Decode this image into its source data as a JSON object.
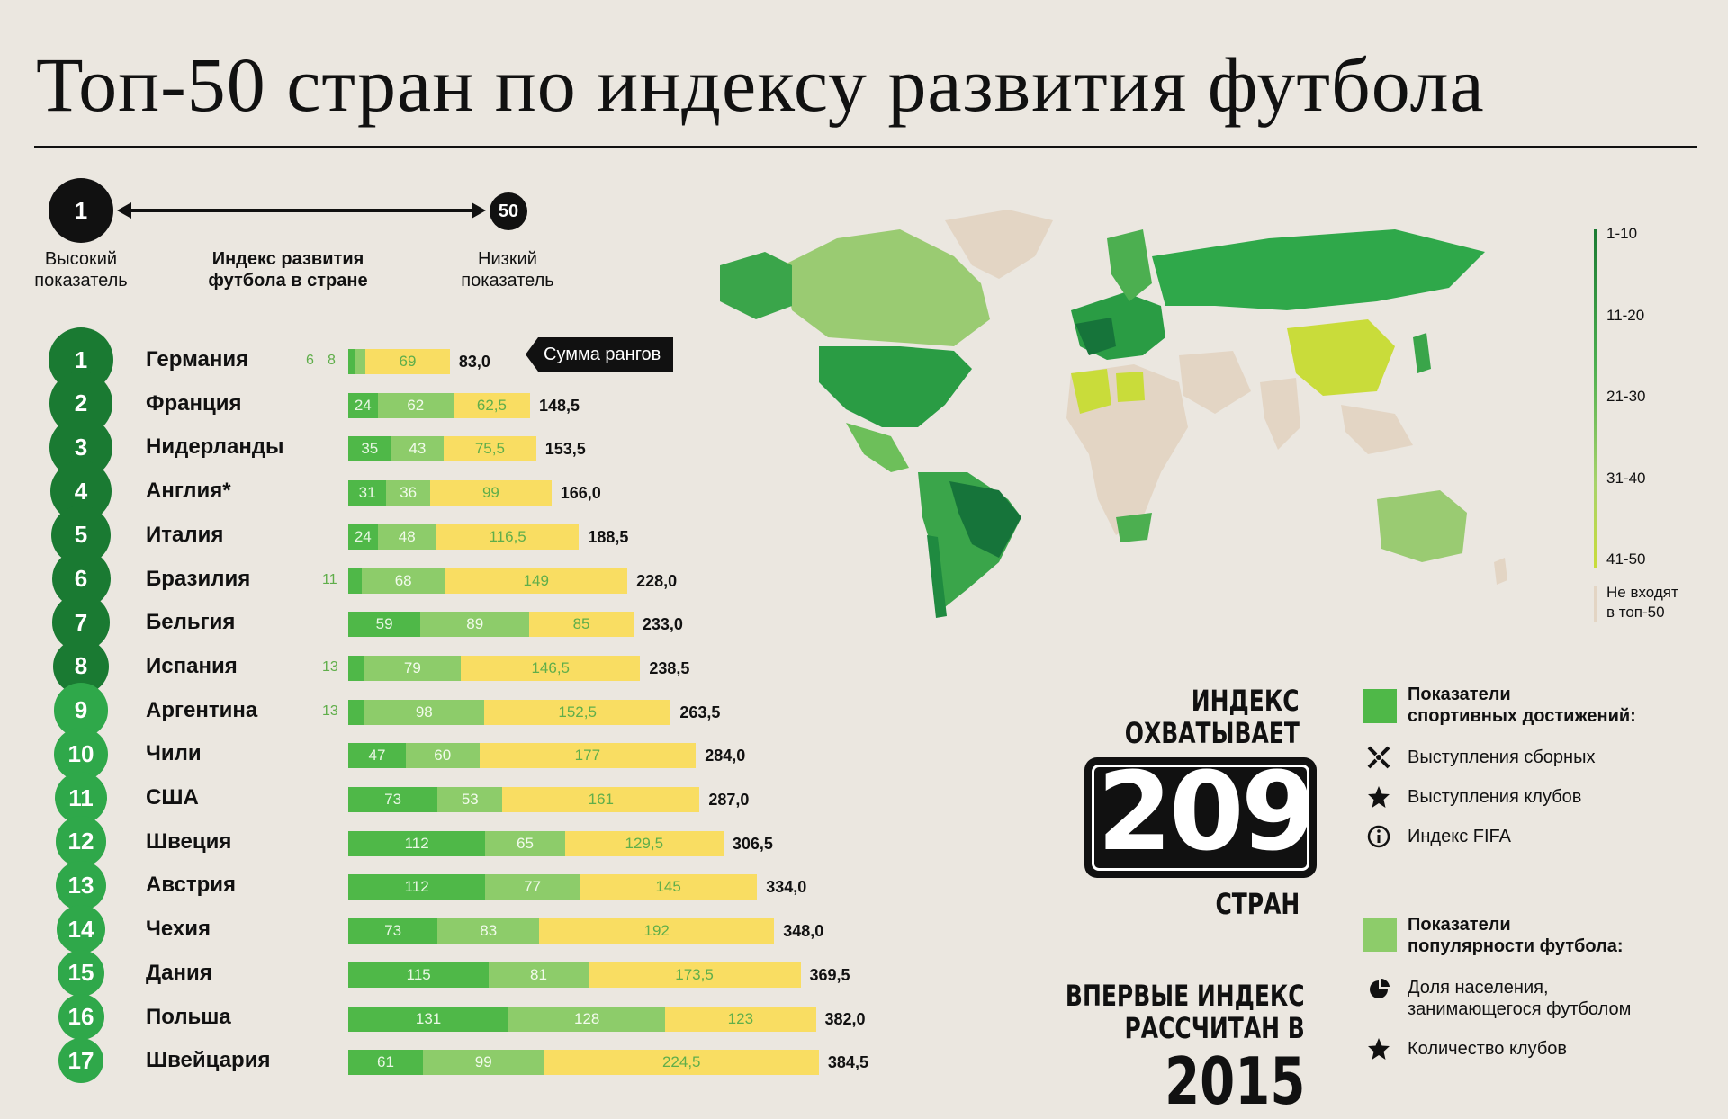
{
  "title": "Топ-50 стран по индексу развития футбола",
  "scale": {
    "left_number": "1",
    "right_number": "50",
    "left_caption_1": "Высокий",
    "left_caption_2": "показатель",
    "middle_caption_1": "Индекс развития",
    "middle_caption_2": "футбола в стране",
    "right_caption_1": "Низкий",
    "right_caption_2": "показатель"
  },
  "callout": "Сумма рангов",
  "colors": {
    "sport": "#4fb848",
    "popularity": "#8dcc6a",
    "third": "#f9dd62",
    "rank_dark": "#1a7a32",
    "rank_light": "#2fa84a"
  },
  "chart_data": {
    "type": "bar",
    "stacked": true,
    "orientation": "horizontal",
    "categories": [
      "Германия",
      "Франция",
      "Нидерланды",
      "Англия*",
      "Италия",
      "Бразилия",
      "Бельгия",
      "Испания",
      "Аргентина",
      "Чили",
      "США",
      "Швеция",
      "Австрия",
      "Чехия",
      "Дания",
      "Польша",
      "Швейцария"
    ],
    "ranks": [
      "1",
      "2",
      "3",
      "4",
      "5",
      "6",
      "7",
      "8",
      "9",
      "10",
      "11",
      "12",
      "13",
      "14",
      "15",
      "16",
      "17"
    ],
    "small_labels": [
      [
        "6",
        "8"
      ],
      [],
      [],
      [],
      [],
      [
        "11"
      ],
      [],
      [
        "13"
      ],
      [
        "13"
      ],
      [],
      [],
      [],
      [],
      [],
      [],
      [],
      []
    ],
    "series": [
      {
        "values": [
          6,
          24,
          35,
          31,
          24,
          11,
          59,
          13,
          13,
          47,
          73,
          112,
          112,
          73,
          115,
          131,
          61
        ],
        "labels": [
          "",
          "24",
          "35",
          "31",
          "24",
          "",
          "59",
          "",
          "",
          "47",
          "73",
          "112",
          "112",
          "73",
          "115",
          "131",
          "61"
        ]
      },
      {
        "values": [
          8,
          62,
          43,
          36,
          48,
          68,
          89,
          79,
          98,
          60,
          53,
          65,
          77,
          83,
          81,
          128,
          99
        ],
        "labels": [
          "",
          "62",
          "43",
          "36",
          "48",
          "68",
          "89",
          "79",
          "98",
          "60",
          "53",
          "65",
          "77",
          "83",
          "81",
          "128",
          "99"
        ]
      },
      {
        "values": [
          69,
          62.5,
          75.5,
          99,
          116.5,
          149,
          85,
          146.5,
          152.5,
          177,
          161,
          129.5,
          145,
          192,
          173.5,
          123,
          224.5
        ],
        "labels": [
          "69",
          "62,5",
          "75,5",
          "99",
          "116,5",
          "149",
          "85",
          "146,5",
          "152,5",
          "177",
          "161",
          "129,5",
          "145",
          "192",
          "173,5",
          "123",
          "224,5"
        ]
      }
    ],
    "totals": [
      "83,0",
      "148,5",
      "153,5",
      "166,0",
      "188,5",
      "228,0",
      "233,0",
      "238,5",
      "263,5",
      "284,0",
      "287,0",
      "306,5",
      "334,0",
      "348,0",
      "369,5",
      "382,0",
      "384,5"
    ]
  },
  "map_legend": {
    "labels": [
      "1-10",
      "11-20",
      "21-30",
      "31-40",
      "41-50"
    ],
    "none_1": "Не входят",
    "none_2": "в топ-50"
  },
  "index_box": {
    "line1": "ИНДЕКС",
    "line2": "ОХВАТЫВАЕТ",
    "digits": [
      "2",
      "0",
      "9"
    ],
    "line3": "СТРАН",
    "first_1": "ВПЕРВЫЕ ИНДЕКС",
    "first_2": "РАССЧИТАН В",
    "first_3": "2015"
  },
  "legend": {
    "sport_title_1": "Показатели",
    "sport_title_2": "спортивных достижений:",
    "sport_items": [
      "Выступления сборных",
      "Выступления клубов",
      "Индекс FIFA"
    ],
    "pop_title_1": "Показатели",
    "pop_title_2": "популярности футбола:",
    "pop_item_1a": "Доля населения,",
    "pop_item_1b": "занимающегося футболом",
    "pop_item_2": "Количество клубов"
  }
}
